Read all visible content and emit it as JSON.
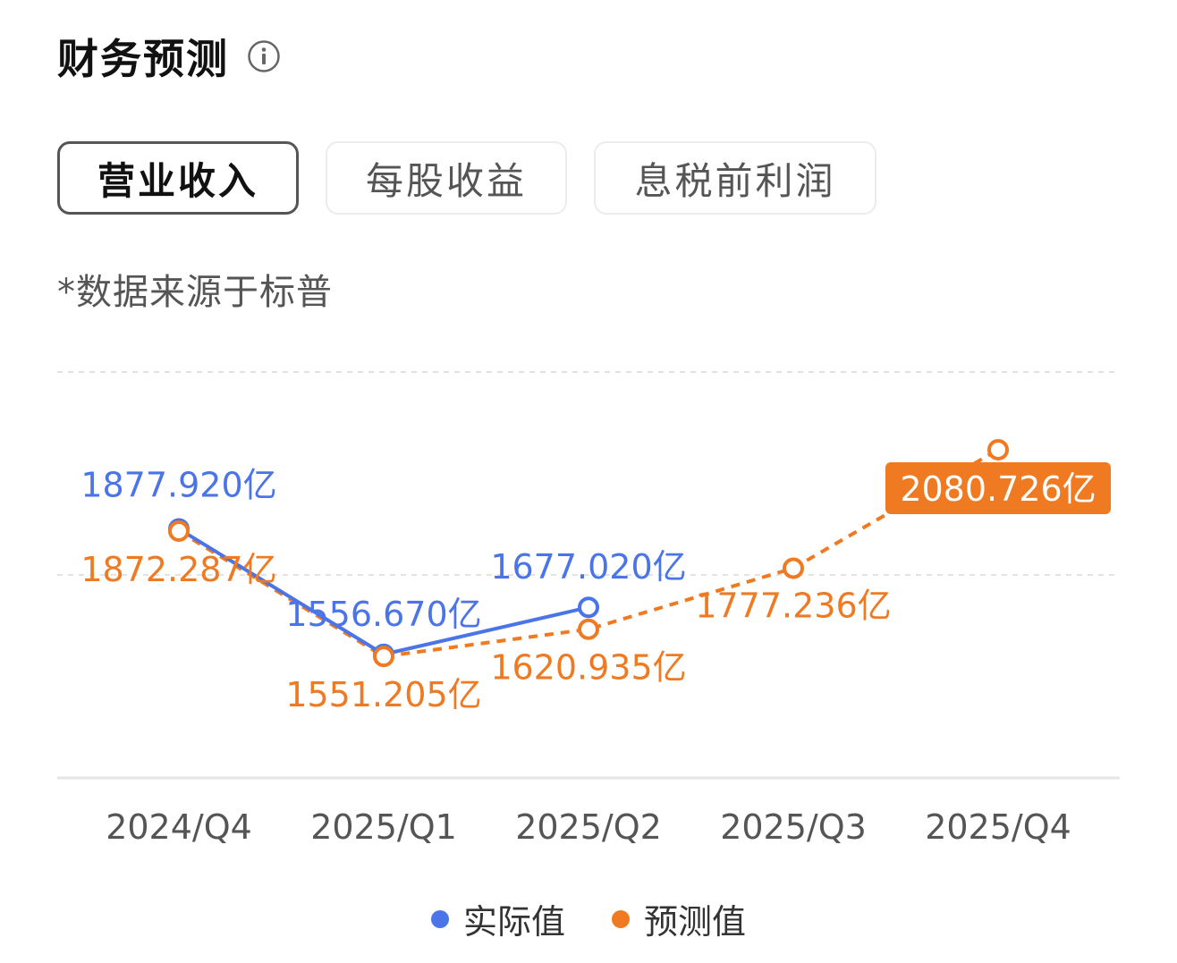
{
  "header": {
    "title": "财务预测"
  },
  "tabs": [
    {
      "label": "营业收入",
      "active": true
    },
    {
      "label": "每股收益",
      "active": false
    },
    {
      "label": "息税前利润",
      "active": false
    }
  ],
  "note": "*数据来源于标普",
  "colors": {
    "actual": "#4a74e8",
    "forecast": "#f07a22",
    "grid": "#e3e3e3",
    "axis_text": "#555555"
  },
  "legend": {
    "actual_label": "实际值",
    "forecast_label": "预测值"
  },
  "chart_data": {
    "type": "line",
    "categories": [
      "2024/Q4",
      "2025/Q1",
      "2025/Q2",
      "2025/Q3",
      "2025/Q4"
    ],
    "ylim": [
      1240,
      2280
    ],
    "grid": true,
    "unit": "亿",
    "series": [
      {
        "name": "实际值",
        "style": "solid",
        "values": [
          1877.92,
          1556.67,
          1677.02,
          null,
          null
        ],
        "labels": [
          "1877.920亿",
          "1556.670亿",
          "1677.020亿",
          null,
          null
        ]
      },
      {
        "name": "预测值",
        "style": "dashed",
        "values": [
          1872.287,
          1551.205,
          1620.935,
          1777.236,
          2080.726
        ],
        "labels": [
          "1872.287亿",
          "1551.205亿",
          "1620.935亿",
          "1777.236亿",
          "2080.726亿"
        ],
        "highlight_index": 4
      }
    ]
  }
}
